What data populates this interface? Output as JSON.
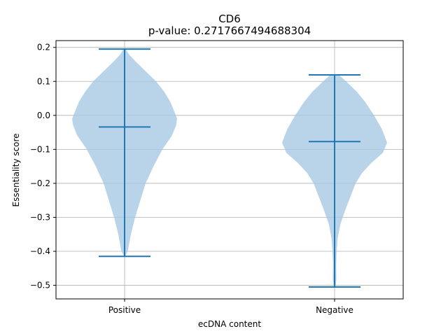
{
  "chart_data": {
    "type": "violin",
    "title": "CD6",
    "subtitle": "p-value: 0.2717667494688304",
    "xlabel": "ecDNA content",
    "ylabel": "Essentiality score",
    "categories": [
      "Positive",
      "Negative"
    ],
    "ylim": [
      -0.54,
      0.22
    ],
    "yticks": [
      0.2,
      0.1,
      0.0,
      -0.1,
      -0.2,
      -0.3,
      -0.4,
      -0.5
    ],
    "ytick_labels": [
      "0.2",
      "0.1",
      "0.0",
      "−0.1",
      "−0.2",
      "−0.3",
      "−0.4",
      "−0.5"
    ],
    "grid": true,
    "colors": {
      "body": "#a8c8e2",
      "lines": "#1f77b4",
      "grid": "#b0b0b0"
    },
    "series": [
      {
        "category": "Positive",
        "max": 0.195,
        "mean": -0.034,
        "min": -0.415,
        "density": [
          [
            0.195,
            0.02
          ],
          [
            0.18,
            0.08
          ],
          [
            0.16,
            0.2
          ],
          [
            0.13,
            0.4
          ],
          [
            0.1,
            0.6
          ],
          [
            0.07,
            0.75
          ],
          [
            0.04,
            0.87
          ],
          [
            0.01,
            0.95
          ],
          [
            -0.01,
            1.0
          ],
          [
            -0.03,
            0.98
          ],
          [
            -0.06,
            0.9
          ],
          [
            -0.1,
            0.72
          ],
          [
            -0.15,
            0.55
          ],
          [
            -0.2,
            0.4
          ],
          [
            -0.25,
            0.3
          ],
          [
            -0.3,
            0.2
          ],
          [
            -0.35,
            0.12
          ],
          [
            -0.4,
            0.06
          ],
          [
            -0.415,
            0.01
          ]
        ]
      },
      {
        "category": "Negative",
        "max": 0.119,
        "mean": -0.077,
        "min": -0.505,
        "density": [
          [
            0.119,
            0.08
          ],
          [
            0.1,
            0.22
          ],
          [
            0.07,
            0.42
          ],
          [
            0.04,
            0.58
          ],
          [
            0.0,
            0.75
          ],
          [
            -0.04,
            0.9
          ],
          [
            -0.08,
            1.0
          ],
          [
            -0.11,
            0.92
          ],
          [
            -0.14,
            0.7
          ],
          [
            -0.17,
            0.52
          ],
          [
            -0.2,
            0.4
          ],
          [
            -0.24,
            0.3
          ],
          [
            -0.28,
            0.2
          ],
          [
            -0.32,
            0.11
          ],
          [
            -0.36,
            0.06
          ],
          [
            -0.4,
            0.04
          ],
          [
            -0.44,
            0.03
          ],
          [
            -0.48,
            0.035
          ],
          [
            -0.505,
            0.02
          ]
        ]
      }
    ]
  }
}
